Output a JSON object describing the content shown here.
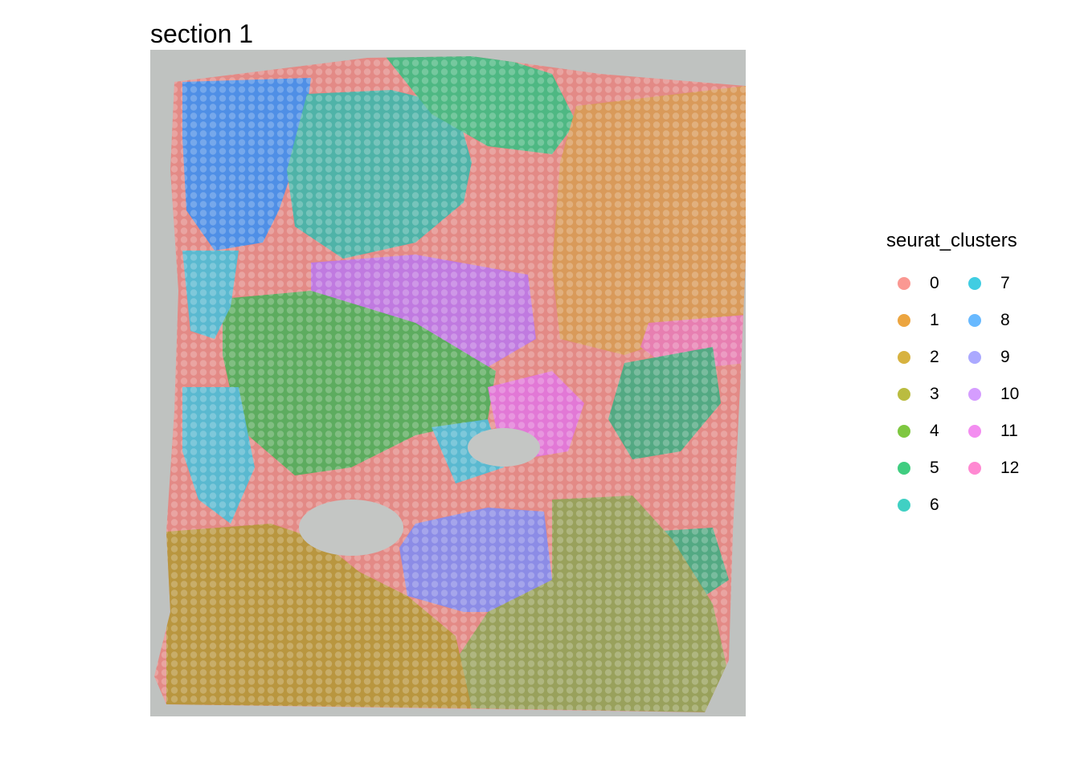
{
  "plot": {
    "title": "section 1"
  },
  "legend": {
    "title": "seurat_clusters",
    "clusters": [
      {
        "label": "0",
        "color": "#F8766D"
      },
      {
        "label": "1",
        "color": "#E58700"
      },
      {
        "label": "2",
        "color": "#C99800"
      },
      {
        "label": "3",
        "color": "#A3A500"
      },
      {
        "label": "4",
        "color": "#53B400"
      },
      {
        "label": "5",
        "color": "#00BC56"
      },
      {
        "label": "6",
        "color": "#00C0AF"
      },
      {
        "label": "7",
        "color": "#00BCD8"
      },
      {
        "label": "8",
        "color": "#35A2FF"
      },
      {
        "label": "9",
        "color": "#8F8CFF"
      },
      {
        "label": "10",
        "color": "#C77CFF"
      },
      {
        "label": "11",
        "color": "#EF67EB"
      },
      {
        "label": "12",
        "color": "#FF61C3"
      }
    ]
  }
}
